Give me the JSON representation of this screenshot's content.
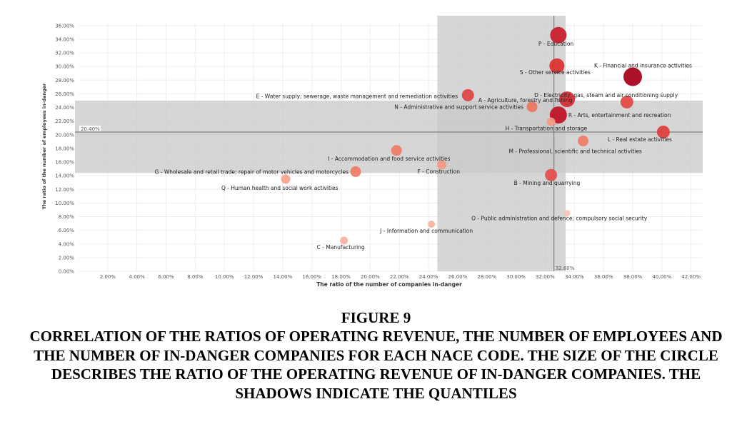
{
  "chart_data": {
    "type": "scatter",
    "xlabel": "The ratio of the number of companies in-danger",
    "ylabel": "The ratio of the number of employees in-danger",
    "xlim": [
      0,
      42.8
    ],
    "ylim": [
      0,
      36.4
    ],
    "x_ticks": [
      "2.00%",
      "4.00%",
      "6.00%",
      "8.00%",
      "10.00%",
      "12.00%",
      "14.00%",
      "16.00%",
      "18.00%",
      "20.00%",
      "22.00%",
      "24.00%",
      "26.00%",
      "28.00%",
      "30.00%",
      "32.00%",
      "34.00%",
      "36.00%",
      "38.00%",
      "40.00%",
      "42.00%"
    ],
    "y_ticks": [
      "0.00%",
      "2.00%",
      "4.00%",
      "6.00%",
      "8.00%",
      "10.00%",
      "12.00%",
      "14.00%",
      "16.00%",
      "18.00%",
      "20.00%",
      "22.00%",
      "24.00%",
      "26.00%",
      "28.00%",
      "30.00%",
      "32.00%",
      "34.00%",
      "36.00%"
    ],
    "x_ref_label": "32.60%",
    "y_ref_label": "20.40%",
    "x_ref": 32.6,
    "y_ref": 20.4,
    "x_shade": [
      24.6,
      33.4
    ],
    "y_shade": [
      14.4,
      25.0
    ],
    "grid": true,
    "points": [
      {
        "label": "P - Education",
        "x": 32.9,
        "y": 34.6,
        "size": 0.085,
        "color": "#c9202f"
      },
      {
        "label": "K - Financial and insurance activities",
        "x": 38.0,
        "y": 28.5,
        "size": 0.1,
        "color": "#a8061f"
      },
      {
        "label": "S - Other service activities",
        "x": 32.8,
        "y": 30.1,
        "size": 0.075,
        "color": "#db3535"
      },
      {
        "label": "D - Electricity, gas, steam and air conditioning supply",
        "x": 33.5,
        "y": 25.2,
        "size": 0.08,
        "color": "#d42e35"
      },
      {
        "label": "E - Water supply; sewerage, waste management and remediation activities",
        "x": 26.7,
        "y": 25.8,
        "size": 0.055,
        "color": "#e04848"
      },
      {
        "label": "A - Agriculture, forestry and fishing",
        "x": 37.6,
        "y": 24.8,
        "size": 0.06,
        "color": "#e24c44"
      },
      {
        "label": "N - Administrative and support service activities",
        "x": 31.1,
        "y": 24.1,
        "size": 0.045,
        "color": "#ec7560"
      },
      {
        "label": "R - Arts, entertainment and recreation",
        "x": 32.9,
        "y": 22.9,
        "size": 0.09,
        "color": "#bf1428"
      },
      {
        "label": "H - Transportation and storage",
        "x": 32.4,
        "y": 21.9,
        "size": 0.03,
        "color": "#f19a86"
      },
      {
        "label": "L - Real estate activities",
        "x": 40.1,
        "y": 20.4,
        "size": 0.06,
        "color": "#e04040"
      },
      {
        "label": "M - Professional, scientific and technical activities",
        "x": 34.6,
        "y": 19.1,
        "size": 0.045,
        "color": "#ee7d68"
      },
      {
        "label": "I - Accommodation and food service activities",
        "x": 21.8,
        "y": 17.7,
        "size": 0.045,
        "color": "#ee7d68"
      },
      {
        "label": "F - Construction",
        "x": 24.9,
        "y": 15.6,
        "size": 0.035,
        "color": "#f19a86"
      },
      {
        "label": "G - Wholesale and retail trade; repair of motor vehicles and motorcycles",
        "x": 19.0,
        "y": 14.6,
        "size": 0.045,
        "color": "#ee7d68"
      },
      {
        "label": "B - Mining and quarrying",
        "x": 32.4,
        "y": 14.1,
        "size": 0.055,
        "color": "#e45050"
      },
      {
        "label": "Q - Human health and social work activities",
        "x": 14.2,
        "y": 13.5,
        "size": 0.035,
        "color": "#f3a48f"
      },
      {
        "label": "O - Public administration and defence; compulsory social security",
        "x": 33.5,
        "y": 8.5,
        "size": 0.015,
        "color": "#f7c4b4"
      },
      {
        "label": "J - Information and communication",
        "x": 24.2,
        "y": 6.9,
        "size": 0.02,
        "color": "#f5b3a2"
      },
      {
        "label": "C - Manufacturing",
        "x": 18.2,
        "y": 4.5,
        "size": 0.025,
        "color": "#f5b3a2"
      }
    ]
  },
  "caption": {
    "figure_number": "FIGURE 9",
    "text": "CORRELATION OF THE RATIOS OF OPERATING REVENUE, THE NUMBER OF EMPLOYEES AND THE NUMBER OF IN-DANGER COMPANIES FOR EACH NACE CODE. THE SIZE OF THE CIRCLE DESCRIBES THE RATIO OF THE OPERATING REVENUE OF IN-DANGER COMPANIES. THE SHADOWS INDICATE THE QUANTILES"
  }
}
